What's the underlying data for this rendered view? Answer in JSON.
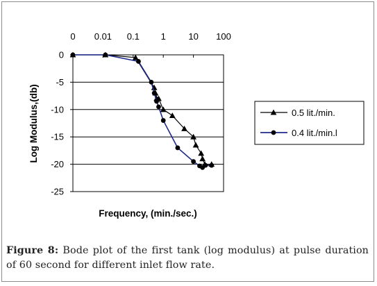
{
  "chart_data": {
    "type": "line",
    "title": "",
    "xlabel": "Frequency, (min./sec.)",
    "ylabel": "Log Modulus,(db)",
    "x_scale": "log",
    "x_tick_labels": [
      "0",
      "0.01",
      "0.1",
      "1",
      "10",
      "100"
    ],
    "y_tick_labels": [
      "0",
      "-5",
      "-10",
      "-15",
      "-20",
      "-25"
    ],
    "ylim": [
      -25,
      0
    ],
    "grid": "horizontal",
    "legend_position": "right",
    "series": [
      {
        "name": "0.5 lit./min.",
        "color": "#000000",
        "marker": "triangle",
        "points": [
          [
            0.001,
            0
          ],
          [
            0.012,
            0
          ],
          [
            0.12,
            -0.5
          ],
          [
            0.5,
            -6
          ],
          [
            0.55,
            -7
          ],
          [
            0.6,
            -8
          ],
          [
            0.7,
            -8
          ],
          [
            1.0,
            -10
          ],
          [
            2.0,
            -11.1
          ],
          [
            5.0,
            -13.5
          ],
          [
            10.0,
            -15
          ],
          [
            12.0,
            -16.5
          ],
          [
            18.0,
            -18
          ],
          [
            20.0,
            -19
          ],
          [
            24.0,
            -20
          ],
          [
            40.0,
            -20
          ]
        ]
      },
      {
        "name": "0.4 lit./min.l",
        "color": "#1f2a8a",
        "marker": "circle",
        "points": [
          [
            0.001,
            0
          ],
          [
            0.012,
            0
          ],
          [
            0.15,
            -1.2
          ],
          [
            0.4,
            -5
          ],
          [
            0.5,
            -7
          ],
          [
            0.6,
            -8.5
          ],
          [
            0.7,
            -9.5
          ],
          [
            1.0,
            -12
          ],
          [
            3.0,
            -17
          ],
          [
            10.0,
            -19.5
          ],
          [
            16.0,
            -20.3
          ],
          [
            20.0,
            -20.6
          ],
          [
            25.0,
            -20.2
          ],
          [
            40.0,
            -20.2
          ]
        ]
      }
    ]
  },
  "caption": {
    "label": "Figure 8:",
    "text": " Bode plot of the first tank (log modulus) at pulse duration of 60 second for different inlet flow rate."
  },
  "colors": {
    "plot_border": "#000000",
    "grid": "#000000",
    "frame": "#8a8a8a"
  }
}
